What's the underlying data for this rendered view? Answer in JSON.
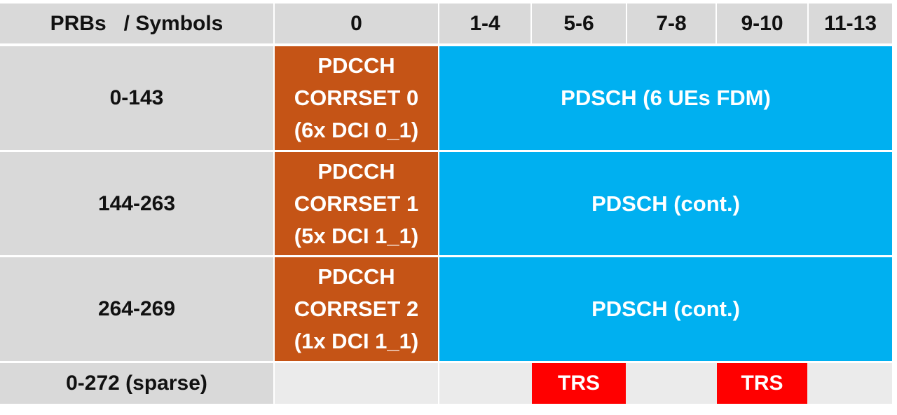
{
  "table": {
    "header": [
      "PRBs   / Symbols",
      "0",
      "1-4",
      "5-6",
      "7-8",
      "9-10",
      "11-13"
    ],
    "rows": [
      {
        "prbs": "0-143",
        "pdcch": [
          "PDCCH",
          "CORRSET 0",
          "(6x DCI 0_1)"
        ],
        "pdsch": "PDSCH (6 UEs FDM)"
      },
      {
        "prbs": "144-263",
        "pdcch": [
          "PDCCH",
          "CORRSET 1",
          "(5x DCI 1_1)"
        ],
        "pdsch": "PDSCH (cont.)"
      },
      {
        "prbs": "264-269",
        "pdcch": [
          "PDCCH",
          "CORRSET 2",
          "(1x DCI 1_1)"
        ],
        "pdsch": "PDSCH (cont.)"
      }
    ],
    "sparse_row": {
      "prbs": "0-272 (sparse)",
      "trs": [
        "TRS",
        "TRS"
      ]
    }
  }
}
